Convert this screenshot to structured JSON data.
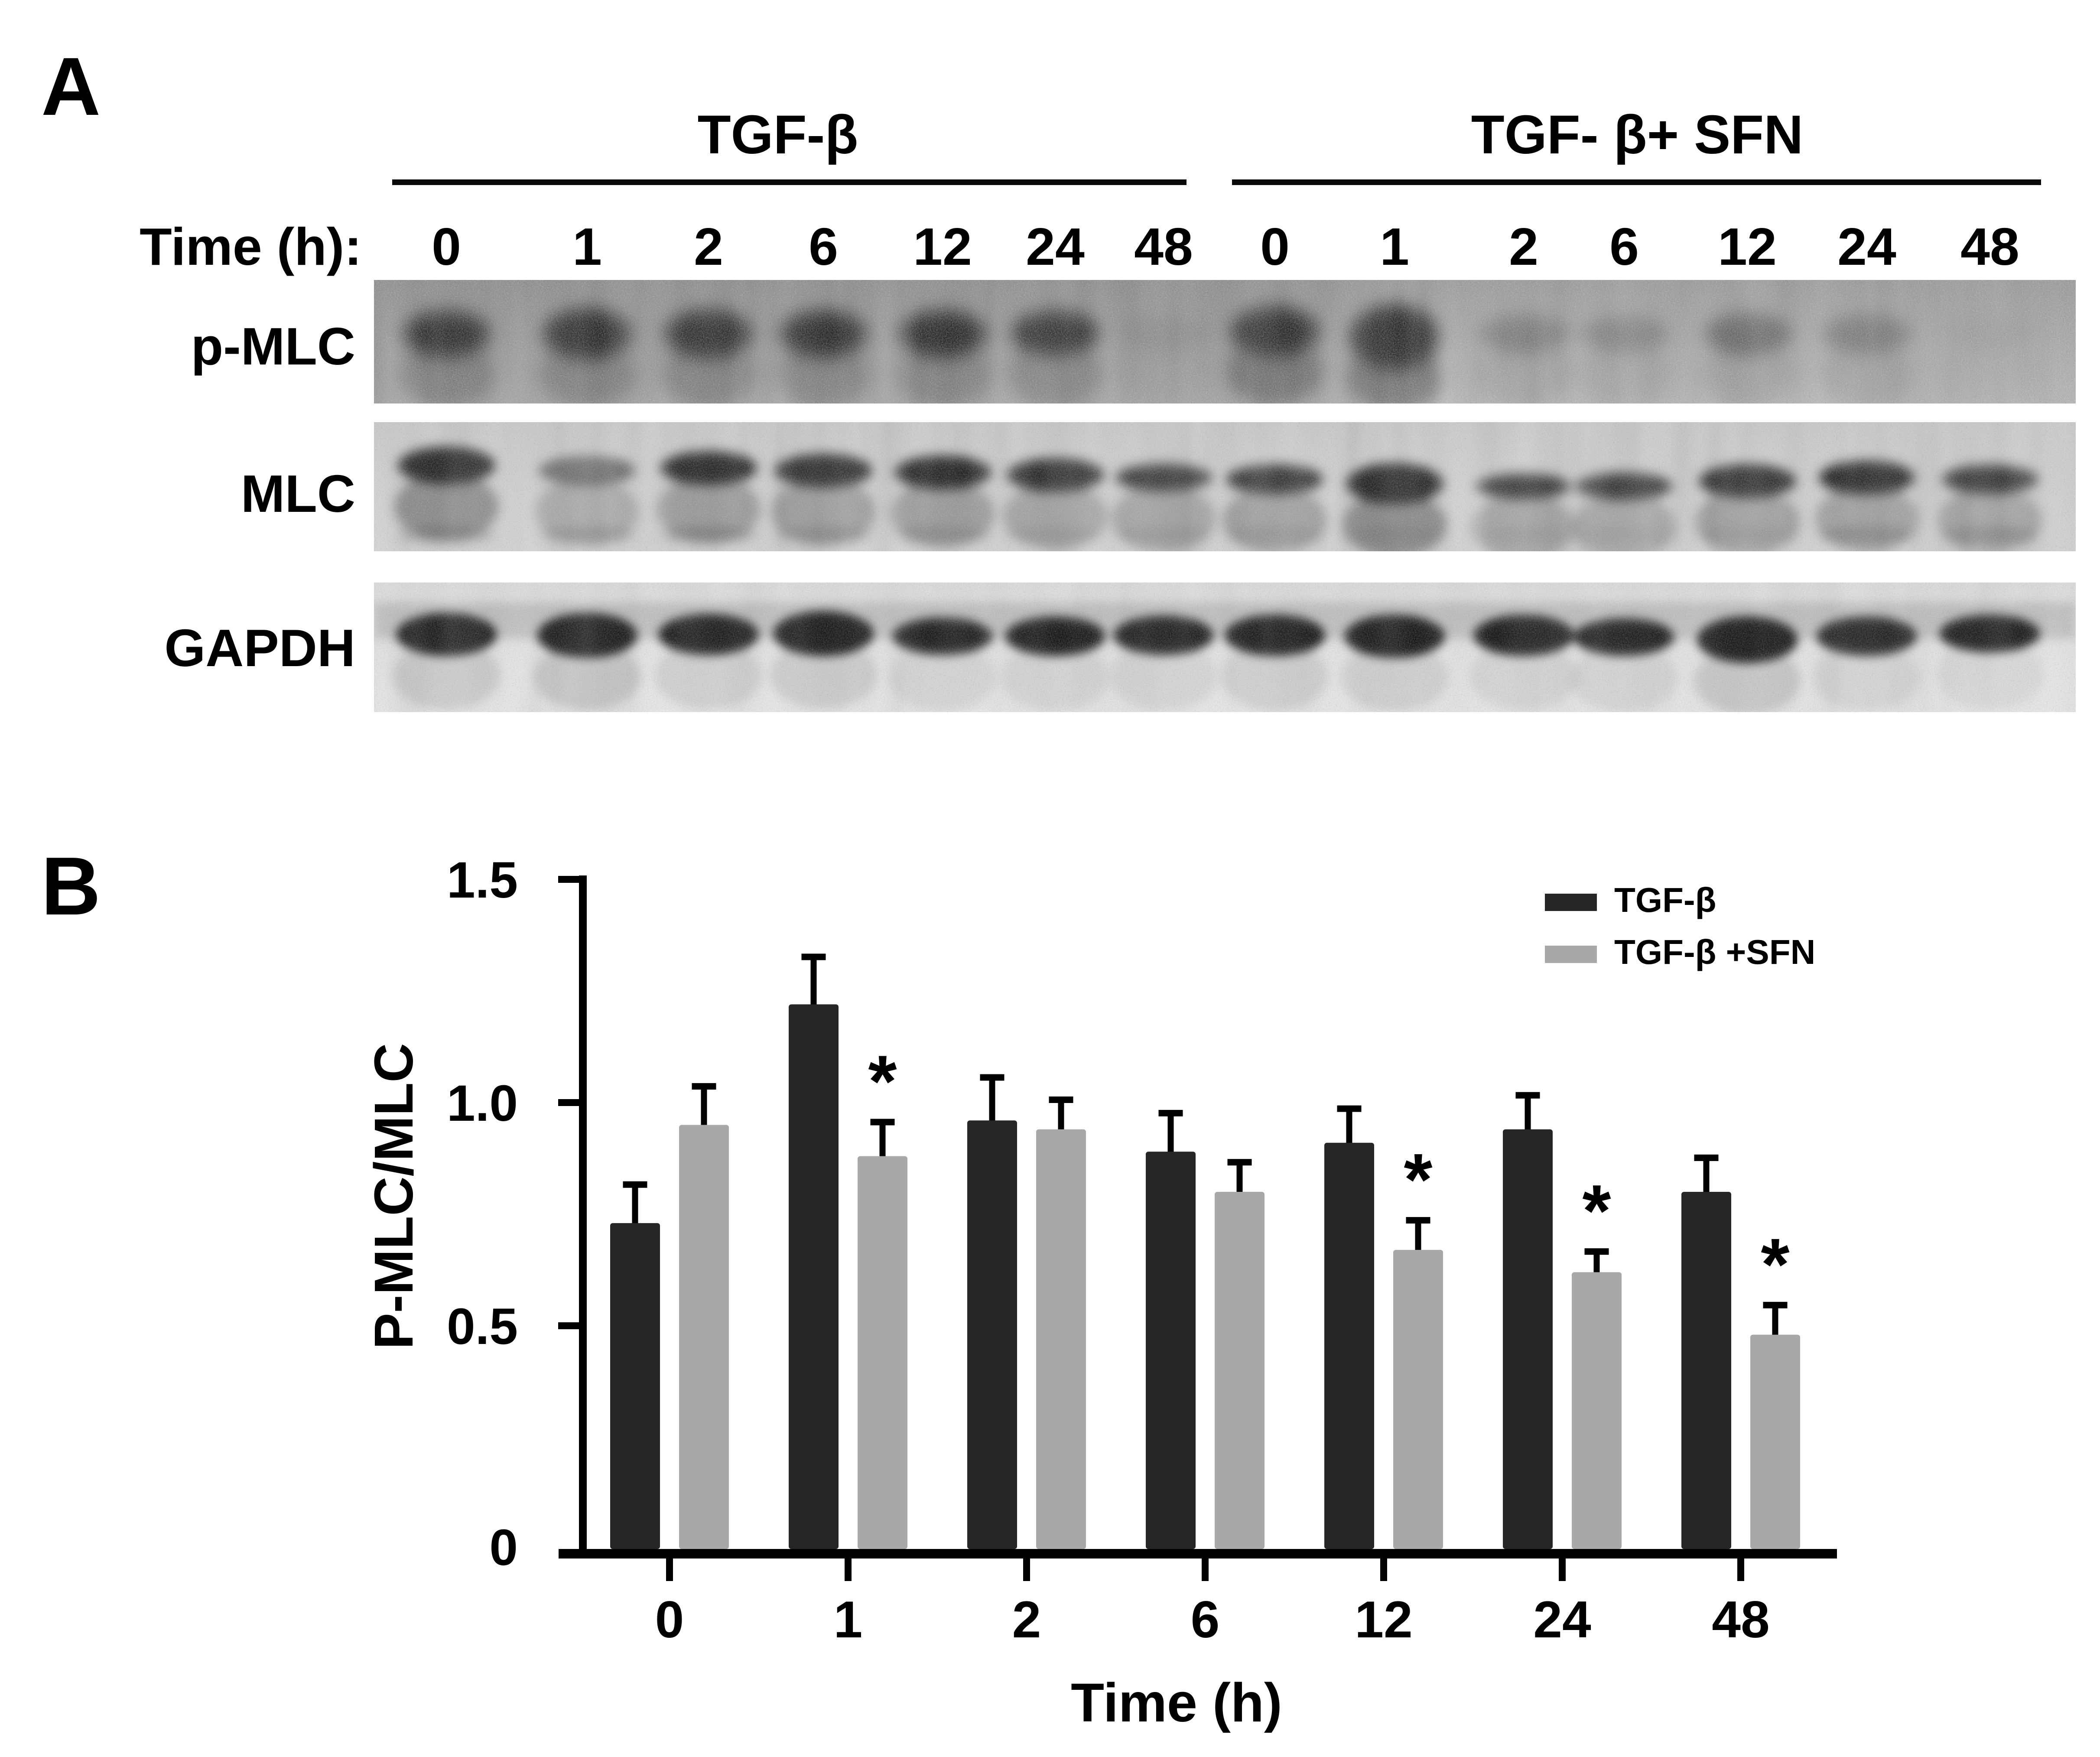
{
  "figure": {
    "panel_a_label": "A",
    "panel_b_label": "B"
  },
  "panel_a": {
    "group_headers": [
      {
        "label": "TGF-β"
      },
      {
        "label": "TGF- β+ SFN"
      }
    ],
    "time_row_label": "Time (h):",
    "time_points": [
      "0",
      "1",
      "2",
      "6",
      "12",
      "24",
      "48"
    ],
    "blot_rows": [
      {
        "label": "p-MLC",
        "band_intensity": [
          0.8,
          0.92,
          0.88,
          0.85,
          0.88,
          0.8,
          0.1,
          0.85,
          0.95,
          0.32,
          0.28,
          0.45,
          0.33,
          0.06
        ]
      },
      {
        "label": "MLC",
        "band_intensity": [
          0.95,
          0.55,
          0.9,
          0.9,
          0.9,
          0.88,
          0.7,
          0.8,
          0.95,
          0.65,
          0.72,
          0.9,
          0.88,
          0.7
        ]
      },
      {
        "label": "GAPDH",
        "band_intensity": [
          0.97,
          0.97,
          0.95,
          0.97,
          0.88,
          0.92,
          0.92,
          0.95,
          0.97,
          0.93,
          0.9,
          0.97,
          0.9,
          0.93
        ]
      }
    ]
  },
  "chart_data": {
    "type": "bar",
    "categories": [
      "0",
      "1",
      "2",
      "6",
      "12",
      "24",
      "48"
    ],
    "series": [
      {
        "name": "TGF-β",
        "color": "#262626",
        "values": [
          0.73,
          1.22,
          0.96,
          0.89,
          0.91,
          0.94,
          0.8
        ],
        "errors": [
          0.08,
          0.1,
          0.09,
          0.08,
          0.07,
          0.07,
          0.07
        ],
        "significant": [
          false,
          false,
          false,
          false,
          false,
          false,
          false
        ]
      },
      {
        "name": "TGF-β +SFN",
        "color": "#a8a8a8",
        "values": [
          0.95,
          0.88,
          0.94,
          0.8,
          0.67,
          0.62,
          0.48
        ],
        "errors": [
          0.08,
          0.07,
          0.06,
          0.06,
          0.06,
          0.04,
          0.06
        ],
        "significant": [
          false,
          true,
          false,
          false,
          true,
          true,
          true
        ]
      }
    ],
    "title": "",
    "xlabel": "Time (h)",
    "ylabel": "P-MLC/MLC",
    "ylim": [
      0,
      1.5
    ],
    "yticks": [
      "0",
      "0.5",
      "1.0",
      "1.5"
    ],
    "ytick_values": [
      0,
      0.5,
      1.0,
      1.5
    ],
    "grid": false,
    "legend_position": "top-right",
    "sig_marker": "*"
  },
  "colors": {
    "bar_black": "#262626",
    "bar_gray": "#a8a8a8",
    "ink": "#000000"
  }
}
